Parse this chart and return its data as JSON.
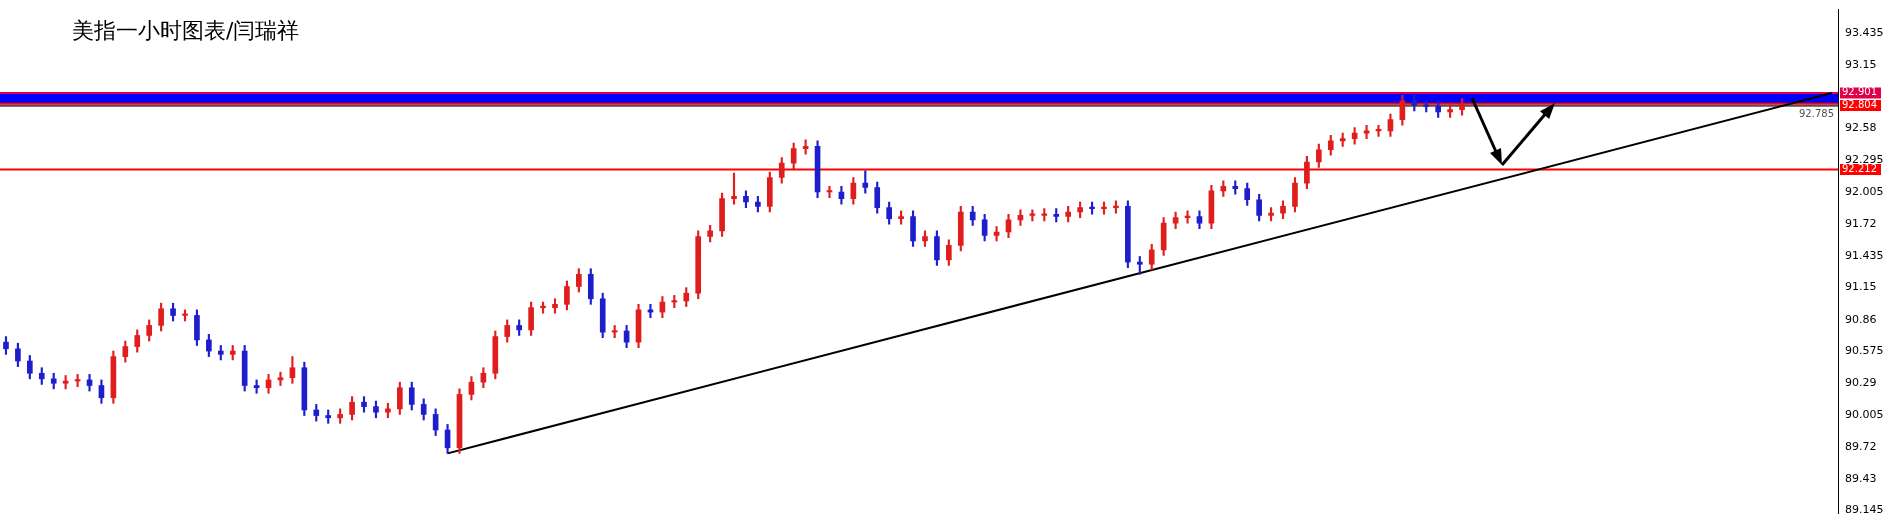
{
  "chart_data": {
    "type": "candlestick",
    "title": "美指一小时图表/闫瑞祥",
    "categories": [
      null,
      null,
      null,
      null,
      null,
      null,
      null,
      null,
      null,
      null,
      null,
      null,
      null,
      null,
      null,
      null,
      null,
      null,
      null,
      null,
      null,
      null,
      null,
      null,
      null,
      null,
      null,
      null,
      null,
      null,
      null,
      null,
      null,
      null,
      null,
      null,
      null,
      null,
      null,
      null,
      null,
      null,
      null,
      null,
      null,
      null,
      null,
      null,
      null,
      null,
      null,
      null,
      null,
      null,
      null,
      null,
      null,
      null,
      null,
      null,
      null,
      null,
      null,
      null,
      null,
      null,
      null,
      null,
      null,
      null,
      null,
      null,
      null,
      null,
      null,
      null,
      null,
      null,
      null,
      null,
      null,
      null,
      null,
      null,
      null,
      null,
      null,
      null,
      null,
      null,
      null,
      null,
      null,
      null,
      null,
      null,
      null,
      null,
      null,
      null,
      null,
      null,
      null,
      null,
      null,
      null,
      null,
      null,
      null,
      null,
      null,
      null,
      null,
      null,
      null,
      null,
      null,
      null,
      null,
      null,
      null,
      null,
      null,
      null,
      null,
      null,
      null,
      null,
      null,
      null,
      null,
      null,
      null,
      null,
      null,
      null,
      null,
      null,
      null,
      null,
      null,
      null,
      null,
      null,
      null,
      null,
      null,
      null,
      null,
      null,
      null,
      null,
      null,
      null
    ],
    "ohlc": [
      [
        90.66,
        90.71,
        90.55,
        90.6
      ],
      [
        90.6,
        90.65,
        90.44,
        90.49
      ],
      [
        90.49,
        90.54,
        90.33,
        90.38
      ],
      [
        90.38,
        90.43,
        90.28,
        90.33
      ],
      [
        90.33,
        90.38,
        90.24,
        90.29
      ],
      [
        90.29,
        90.36,
        90.24,
        90.31
      ],
      [
        90.31,
        90.37,
        90.26,
        90.32
      ],
      [
        90.32,
        90.37,
        90.22,
        90.27
      ],
      [
        90.27,
        90.32,
        90.11,
        90.16
      ],
      [
        90.16,
        90.58,
        90.11,
        90.53
      ],
      [
        90.53,
        90.67,
        90.48,
        90.62
      ],
      [
        90.62,
        90.77,
        90.57,
        90.72
      ],
      [
        90.72,
        90.86,
        90.67,
        90.81
      ],
      [
        90.81,
        91.01,
        90.76,
        90.96
      ],
      [
        90.96,
        91.01,
        90.85,
        90.9
      ],
      [
        90.9,
        90.95,
        90.85,
        90.9
      ],
      [
        90.9,
        90.95,
        90.63,
        90.68
      ],
      [
        90.68,
        90.73,
        90.53,
        90.58
      ],
      [
        90.58,
        90.63,
        90.5,
        90.55
      ],
      [
        90.55,
        90.63,
        90.5,
        90.58
      ],
      [
        90.58,
        90.63,
        90.22,
        90.27
      ],
      [
        90.27,
        90.32,
        90.2,
        90.25
      ],
      [
        90.25,
        90.37,
        90.2,
        90.32
      ],
      [
        90.32,
        90.39,
        90.27,
        90.34
      ],
      [
        90.34,
        90.53,
        90.29,
        90.43
      ],
      [
        90.43,
        90.48,
        90.0,
        90.05
      ],
      [
        90.05,
        90.1,
        89.95,
        90.0
      ],
      [
        90.0,
        90.05,
        89.93,
        89.98
      ],
      [
        89.98,
        90.06,
        89.93,
        90.01
      ],
      [
        90.01,
        90.17,
        89.96,
        90.12
      ],
      [
        90.12,
        90.17,
        90.03,
        90.08
      ],
      [
        90.08,
        90.13,
        89.98,
        90.03
      ],
      [
        90.03,
        90.11,
        89.98,
        90.06
      ],
      [
        90.06,
        90.3,
        90.01,
        90.25
      ],
      [
        90.25,
        90.3,
        90.05,
        90.1
      ],
      [
        90.1,
        90.15,
        89.96,
        90.01
      ],
      [
        90.01,
        90.06,
        89.82,
        89.87
      ],
      [
        89.87,
        89.92,
        89.66,
        89.71
      ],
      [
        89.71,
        90.24,
        89.66,
        90.19
      ],
      [
        90.19,
        90.35,
        90.14,
        90.3
      ],
      [
        90.3,
        90.43,
        90.25,
        90.38
      ],
      [
        90.38,
        90.76,
        90.33,
        90.71
      ],
      [
        90.71,
        90.86,
        90.66,
        90.81
      ],
      [
        90.81,
        90.86,
        90.72,
        90.77
      ],
      [
        90.77,
        91.02,
        90.72,
        90.97
      ],
      [
        90.97,
        91.02,
        90.92,
        90.97
      ],
      [
        90.97,
        91.05,
        90.92,
        91.0
      ],
      [
        91.0,
        91.21,
        90.95,
        91.16
      ],
      [
        91.16,
        91.32,
        91.11,
        91.27
      ],
      [
        91.27,
        91.32,
        91.0,
        91.05
      ],
      [
        91.05,
        91.1,
        90.7,
        90.75
      ],
      [
        90.75,
        90.81,
        90.7,
        90.76
      ],
      [
        90.76,
        90.81,
        90.61,
        90.66
      ],
      [
        90.66,
        91.0,
        90.61,
        90.95
      ],
      [
        90.95,
        91.0,
        90.88,
        90.93
      ],
      [
        90.93,
        91.07,
        90.88,
        91.02
      ],
      [
        91.02,
        91.08,
        90.97,
        91.03
      ],
      [
        91.03,
        91.15,
        90.98,
        91.1
      ],
      [
        91.1,
        91.66,
        91.05,
        91.61
      ],
      [
        91.61,
        91.71,
        91.56,
        91.66
      ],
      [
        91.66,
        92.0,
        91.61,
        91.95
      ],
      [
        91.95,
        92.18,
        91.9,
        91.97
      ],
      [
        91.97,
        92.02,
        91.87,
        91.92
      ],
      [
        91.92,
        91.97,
        91.83,
        91.88
      ],
      [
        91.88,
        92.19,
        91.83,
        92.14
      ],
      [
        92.14,
        92.32,
        92.09,
        92.27
      ],
      [
        92.27,
        92.45,
        92.22,
        92.4
      ],
      [
        92.4,
        92.48,
        92.35,
        92.42
      ],
      [
        92.42,
        92.47,
        91.96,
        92.01
      ],
      [
        92.01,
        92.06,
        91.96,
        92.01
      ],
      [
        92.01,
        92.06,
        91.9,
        91.95
      ],
      [
        91.95,
        92.14,
        91.9,
        92.09
      ],
      [
        92.09,
        92.2,
        92.0,
        92.05
      ],
      [
        92.05,
        92.1,
        91.82,
        91.87
      ],
      [
        91.87,
        91.92,
        91.72,
        91.77
      ],
      [
        91.77,
        91.84,
        91.72,
        91.79
      ],
      [
        91.79,
        91.84,
        91.52,
        91.57
      ],
      [
        91.57,
        91.66,
        91.52,
        91.61
      ],
      [
        91.61,
        91.66,
        91.35,
        91.4
      ],
      [
        91.4,
        91.58,
        91.35,
        91.53
      ],
      [
        91.53,
        91.88,
        91.48,
        91.83
      ],
      [
        91.83,
        91.88,
        91.71,
        91.76
      ],
      [
        91.76,
        91.81,
        91.57,
        91.62
      ],
      [
        91.62,
        91.7,
        91.57,
        91.65
      ],
      [
        91.65,
        91.81,
        91.6,
        91.76
      ],
      [
        91.76,
        91.85,
        91.71,
        91.8
      ],
      [
        91.8,
        91.85,
        91.75,
        91.8
      ],
      [
        91.8,
        91.86,
        91.75,
        91.81
      ],
      [
        91.81,
        91.86,
        91.74,
        91.79
      ],
      [
        91.79,
        91.88,
        91.74,
        91.83
      ],
      [
        91.83,
        91.92,
        91.78,
        91.87
      ],
      [
        91.87,
        91.92,
        91.81,
        91.86
      ],
      [
        91.86,
        91.92,
        91.81,
        91.87
      ],
      [
        91.87,
        91.93,
        91.82,
        91.88
      ],
      [
        91.88,
        91.93,
        91.33,
        91.38
      ],
      [
        91.38,
        91.43,
        91.27,
        91.36
      ],
      [
        91.36,
        91.54,
        91.31,
        91.49
      ],
      [
        91.49,
        91.78,
        91.44,
        91.73
      ],
      [
        91.73,
        91.83,
        91.68,
        91.78
      ],
      [
        91.78,
        91.84,
        91.73,
        91.79
      ],
      [
        91.79,
        91.84,
        91.68,
        91.73
      ],
      [
        91.73,
        92.07,
        91.68,
        92.02
      ],
      [
        92.02,
        92.11,
        91.97,
        92.06
      ],
      [
        92.06,
        92.11,
        91.99,
        92.04
      ],
      [
        92.04,
        92.09,
        91.89,
        91.94
      ],
      [
        91.94,
        91.99,
        91.75,
        91.8
      ],
      [
        91.8,
        91.87,
        91.75,
        91.82
      ],
      [
        91.82,
        91.93,
        91.77,
        91.88
      ],
      [
        91.88,
        92.14,
        91.83,
        92.09
      ],
      [
        92.09,
        92.33,
        92.04,
        92.28
      ],
      [
        92.28,
        92.44,
        92.23,
        92.39
      ],
      [
        92.39,
        92.52,
        92.34,
        92.47
      ],
      [
        92.47,
        92.54,
        92.42,
        92.49
      ],
      [
        92.49,
        92.59,
        92.44,
        92.54
      ],
      [
        92.54,
        92.61,
        92.49,
        92.56
      ],
      [
        92.56,
        92.61,
        92.51,
        92.56
      ],
      [
        92.56,
        92.71,
        92.51,
        92.66
      ],
      [
        92.66,
        92.88,
        92.61,
        92.83
      ],
      [
        92.83,
        92.88,
        92.74,
        92.79
      ],
      [
        92.79,
        92.83,
        92.73,
        92.78
      ],
      [
        92.78,
        92.83,
        92.68,
        92.73
      ],
      [
        92.73,
        92.8,
        92.68,
        92.75
      ],
      [
        92.75,
        92.85,
        92.7,
        92.8
      ],
      null,
      null,
      null,
      null,
      null,
      null,
      null,
      null,
      null,
      null,
      null,
      null,
      null,
      null,
      null,
      null,
      null,
      null,
      null,
      null,
      null,
      null,
      null,
      null,
      null,
      null,
      null,
      null,
      null,
      null,
      null
    ],
    "colors": [
      "#1e1ecc",
      "#1e1ecc",
      "#1e1ecc",
      "#1e1ecc",
      "#1e1ecc",
      "#e01e1e",
      "#e01e1e",
      "#1e1ecc",
      "#1e1ecc",
      "#e01e1e",
      "#e01e1e",
      "#e01e1e",
      "#e01e1e",
      "#e01e1e",
      "#1e1ecc",
      "#e01e1e",
      "#1e1ecc",
      "#1e1ecc",
      "#1e1ecc",
      "#e01e1e",
      "#1e1ecc",
      "#1e1ecc",
      "#e01e1e",
      "#e01e1e",
      "#e01e1e",
      "#1e1ecc",
      "#1e1ecc",
      "#1e1ecc",
      "#e01e1e",
      "#e01e1e",
      "#1e1ecc",
      "#1e1ecc",
      "#e01e1e",
      "#e01e1e",
      "#1e1ecc",
      "#1e1ecc",
      "#1e1ecc",
      "#1e1ecc",
      "#e01e1e",
      "#e01e1e",
      "#e01e1e",
      "#e01e1e",
      "#e01e1e",
      "#1e1ecc",
      "#e01e1e",
      "#e01e1e",
      "#e01e1e",
      "#e01e1e",
      "#e01e1e",
      "#1e1ecc",
      "#1e1ecc",
      "#e01e1e",
      "#1e1ecc",
      "#e01e1e",
      "#1e1ecc",
      "#e01e1e",
      "#e01e1e",
      "#e01e1e",
      "#e01e1e",
      "#e01e1e",
      "#e01e1e",
      "#e01e1e",
      "#1e1ecc",
      "#1e1ecc",
      "#e01e1e",
      "#e01e1e",
      "#e01e1e",
      "#e01e1e",
      "#1e1ecc",
      "#e01e1e",
      "#1e1ecc",
      "#e01e1e",
      "#1e1ecc",
      "#1e1ecc",
      "#1e1ecc",
      "#e01e1e",
      "#1e1ecc",
      "#e01e1e",
      "#1e1ecc",
      "#e01e1e",
      "#e01e1e",
      "#1e1ecc",
      "#1e1ecc",
      "#e01e1e",
      "#e01e1e",
      "#e01e1e",
      "#e01e1e",
      "#e01e1e",
      "#1e1ecc",
      "#e01e1e",
      "#e01e1e",
      "#1e1ecc",
      "#e01e1e",
      "#e01e1e",
      "#1e1ecc",
      "#1e1ecc",
      "#e01e1e",
      "#e01e1e",
      "#e01e1e",
      "#e01e1e",
      "#1e1ecc",
      "#e01e1e",
      "#e01e1e",
      "#1e1ecc",
      "#1e1ecc",
      "#1e1ecc",
      "#e01e1e",
      "#e01e1e",
      "#e01e1e",
      "#e01e1e",
      "#e01e1e",
      "#e01e1e",
      "#e01e1e",
      "#e01e1e",
      "#e01e1e",
      "#e01e1e",
      "#e01e1e",
      "#e01e1e",
      "#1e1ecc",
      "#1e1ecc",
      "#1e1ecc",
      "#e01e1e",
      "#e01e1e",
      null,
      null,
      null,
      null,
      null,
      null,
      null,
      null,
      null,
      null,
      null,
      null,
      null,
      null,
      null,
      null,
      null,
      null,
      null,
      null,
      null,
      null,
      null,
      null,
      null,
      null,
      null,
      null,
      null,
      null,
      null
    ],
    "series": [
      {
        "type": "line",
        "color": "#000000",
        "values": [
          null,
          null,
          null,
          null,
          null,
          null,
          null,
          null,
          null,
          null,
          null,
          null,
          null,
          null,
          null,
          null,
          null,
          null,
          null,
          null,
          null,
          null,
          null,
          null,
          null,
          null,
          null,
          null,
          null,
          null,
          null,
          null,
          null,
          null,
          null,
          null,
          null,
          89.66,
          null,
          null,
          null,
          null,
          null,
          null,
          null,
          null,
          null,
          null,
          null,
          null,
          null,
          null,
          null,
          null,
          null,
          null,
          null,
          null,
          null,
          null,
          null,
          null,
          null,
          null,
          null,
          null,
          null,
          null,
          null,
          null,
          null,
          null,
          null,
          null,
          null,
          null,
          null,
          null,
          null,
          null,
          null,
          null,
          null,
          null,
          null,
          null,
          null,
          null,
          null,
          null,
          null,
          null,
          null,
          null,
          null,
          null,
          null,
          null,
          null,
          null,
          null,
          null,
          null,
          null,
          null,
          null,
          null,
          null,
          null,
          null,
          null,
          null,
          null,
          null,
          null,
          null,
          null,
          null,
          null,
          null,
          null,
          null,
          null,
          null,
          null,
          null,
          null,
          null,
          null,
          null,
          null,
          null,
          null,
          null,
          null,
          null,
          null,
          null,
          null,
          null,
          null,
          null,
          null,
          null,
          null,
          null,
          null,
          null,
          null,
          null,
          null,
          null,
          null,
          92.9
        ]
      }
    ],
    "ylim": [
      89.12,
      93.65
    ],
    "yticks": [
      93.435,
      93.15,
      92.58,
      92.295,
      92.005,
      91.72,
      91.435,
      91.15,
      90.86,
      90.575,
      90.29,
      90.005,
      89.72,
      89.43,
      89.145
    ],
    "bands": [
      {
        "axis": "y",
        "from": 92.804,
        "to": 92.901,
        "color": "#0000ff"
      }
    ],
    "ref_lines": [
      {
        "axis": "y",
        "value": 92.901,
        "label": "92.901",
        "color": "#e0004a"
      },
      {
        "axis": "y",
        "value": 92.785,
        "label": "92.785",
        "color": "#505050"
      },
      {
        "axis": "y",
        "value": 92.804,
        "label": "92.804",
        "color": "#ff0000"
      },
      {
        "axis": "y",
        "value": 92.212,
        "label": "92.212",
        "color": "#ff0000"
      }
    ],
    "tick_labels": "y"
  }
}
